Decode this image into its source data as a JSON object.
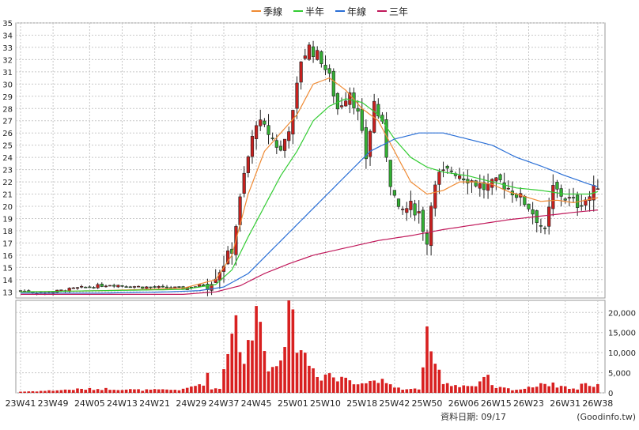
{
  "chart_data": {
    "type": "candlestick",
    "title": "",
    "legend": {
      "placement": "top-center",
      "items": [
        {
          "label": "季線",
          "color": "#ef8a33"
        },
        {
          "label": "半年",
          "color": "#33cc33"
        },
        {
          "label": "年線",
          "color": "#2a6fd6"
        },
        {
          "label": "三年",
          "color": "#c0185a"
        }
      ]
    },
    "price_axis": {
      "min": 12.5,
      "max": 35,
      "ticks": [
        13,
        14,
        15,
        16,
        17,
        18,
        19,
        20,
        21,
        22,
        23,
        24,
        25,
        26,
        27,
        28,
        29,
        30,
        31,
        32,
        33,
        34,
        35
      ],
      "position": "left",
      "grid": true
    },
    "volume_axis": {
      "min": 0,
      "max": 23000,
      "ticks": [
        0,
        5000,
        10000,
        15000,
        20000
      ],
      "tick_labels": [
        "0",
        "5,000",
        "10,000",
        "15,000",
        "20,000"
      ],
      "position": "right",
      "grid": true
    },
    "x_labels": [
      "23W41",
      "23W49",
      "24W05",
      "24W13",
      "24W21",
      "24W29",
      "24W37",
      "24W45",
      "25W01",
      "25W10",
      "25W18",
      "25W42",
      "25W50",
      "26W06",
      "26W15",
      "26W23",
      "26W31",
      "26W38"
    ],
    "price_anchors": [
      [
        0,
        13.1
      ],
      [
        6,
        12.9
      ],
      [
        14,
        13.3
      ],
      [
        22,
        13.6
      ],
      [
        30,
        13.4
      ],
      [
        40,
        13.3
      ],
      [
        46,
        13.6
      ],
      [
        49,
        14.8
      ],
      [
        52,
        16.5
      ],
      [
        55,
        22.5
      ],
      [
        58,
        27
      ],
      [
        61,
        26
      ],
      [
        64,
        24.5
      ],
      [
        67,
        27.5
      ],
      [
        69,
        32
      ],
      [
        71,
        33
      ],
      [
        74,
        32
      ],
      [
        76,
        30.5
      ],
      [
        78,
        28
      ],
      [
        81,
        29.5
      ],
      [
        83,
        27.5
      ],
      [
        85,
        24
      ],
      [
        87,
        28.5
      ],
      [
        89,
        26.5
      ],
      [
        91,
        22
      ],
      [
        93,
        19.5
      ],
      [
        96,
        20
      ],
      [
        98,
        19.5
      ],
      [
        100,
        17
      ],
      [
        101,
        20.5
      ],
      [
        103,
        22.5
      ],
      [
        106,
        23
      ],
      [
        110,
        22.3
      ],
      [
        114,
        21.5
      ],
      [
        118,
        22
      ],
      [
        122,
        21
      ],
      [
        125,
        20
      ],
      [
        128,
        18.5
      ],
      [
        129,
        17.8
      ],
      [
        131,
        21.5
      ],
      [
        134,
        20.7
      ],
      [
        137,
        20.2
      ],
      [
        140,
        20.8
      ],
      [
        142,
        21.8
      ]
    ],
    "volume_anchors": [
      [
        0,
        300
      ],
      [
        6,
        500
      ],
      [
        14,
        900
      ],
      [
        22,
        1000
      ],
      [
        30,
        700
      ],
      [
        40,
        800
      ],
      [
        45,
        2500
      ],
      [
        46,
        4000
      ],
      [
        47,
        1200
      ],
      [
        49,
        1000
      ],
      [
        52,
        17000
      ],
      [
        53,
        18000
      ],
      [
        55,
        8000
      ],
      [
        57,
        14000
      ],
      [
        59,
        23500
      ],
      [
        61,
        5000
      ],
      [
        63,
        8000
      ],
      [
        65,
        15000
      ],
      [
        66,
        18000
      ],
      [
        68,
        14000
      ],
      [
        70,
        9000
      ],
      [
        72,
        6000
      ],
      [
        74,
        4000
      ],
      [
        76,
        5000
      ],
      [
        78,
        3000
      ],
      [
        80,
        4000
      ],
      [
        82,
        3000
      ],
      [
        85,
        2500
      ],
      [
        88,
        3500
      ],
      [
        90,
        2000
      ],
      [
        92,
        1500
      ],
      [
        95,
        800
      ],
      [
        98,
        1000
      ],
      [
        100,
        13000
      ],
      [
        101,
        8000
      ],
      [
        102,
        7000
      ],
      [
        104,
        3000
      ],
      [
        106,
        2000
      ],
      [
        110,
        1800
      ],
      [
        112,
        1500
      ],
      [
        115,
        4000
      ],
      [
        116,
        1500
      ],
      [
        120,
        1000
      ],
      [
        122,
        800
      ],
      [
        125,
        1200
      ],
      [
        128,
        2500
      ],
      [
        131,
        2000
      ],
      [
        134,
        1500
      ],
      [
        137,
        800
      ],
      [
        139,
        3000
      ],
      [
        140,
        1500
      ],
      [
        142,
        2200
      ]
    ],
    "ma_anchors": {
      "季線": [
        [
          0,
          13
        ],
        [
          20,
          13.1
        ],
        [
          40,
          13.3
        ],
        [
          48,
          14
        ],
        [
          52,
          16
        ],
        [
          56,
          21
        ],
        [
          60,
          24.5
        ],
        [
          64,
          26
        ],
        [
          68,
          27.5
        ],
        [
          72,
          30
        ],
        [
          76,
          30.5
        ],
        [
          80,
          29.5
        ],
        [
          84,
          28
        ],
        [
          88,
          27
        ],
        [
          92,
          24.5
        ],
        [
          96,
          22
        ],
        [
          100,
          21
        ],
        [
          104,
          21.3
        ],
        [
          108,
          22
        ],
        [
          112,
          22
        ],
        [
          116,
          21.8
        ],
        [
          120,
          21.2
        ],
        [
          124,
          20.8
        ],
        [
          128,
          20.4
        ],
        [
          132,
          20.5
        ],
        [
          136,
          20.3
        ],
        [
          142,
          20.7
        ]
      ],
      "半年": [
        [
          0,
          13
        ],
        [
          20,
          13.1
        ],
        [
          40,
          13.2
        ],
        [
          48,
          13.6
        ],
        [
          52,
          14.8
        ],
        [
          56,
          17.5
        ],
        [
          60,
          20
        ],
        [
          64,
          22.5
        ],
        [
          68,
          24.5
        ],
        [
          72,
          27
        ],
        [
          76,
          28.2
        ],
        [
          80,
          28.8
        ],
        [
          84,
          28.5
        ],
        [
          88,
          27.5
        ],
        [
          92,
          25.5
        ],
        [
          96,
          24
        ],
        [
          100,
          23.2
        ],
        [
          104,
          22.8
        ],
        [
          110,
          22.5
        ],
        [
          116,
          22
        ],
        [
          122,
          21.5
        ],
        [
          128,
          21.3
        ],
        [
          134,
          21
        ],
        [
          140,
          21
        ],
        [
          142,
          21.2
        ]
      ],
      "年線": [
        [
          0,
          12.9
        ],
        [
          20,
          12.9
        ],
        [
          36,
          13
        ],
        [
          44,
          13.1
        ],
        [
          50,
          13.4
        ],
        [
          56,
          14.5
        ],
        [
          62,
          16.5
        ],
        [
          68,
          18.5
        ],
        [
          74,
          20.5
        ],
        [
          80,
          22.5
        ],
        [
          86,
          24.5
        ],
        [
          92,
          25.5
        ],
        [
          98,
          26
        ],
        [
          104,
          26
        ],
        [
          110,
          25.5
        ],
        [
          116,
          25
        ],
        [
          122,
          24
        ],
        [
          128,
          23.3
        ],
        [
          134,
          22.5
        ],
        [
          140,
          21.8
        ],
        [
          142,
          21.6
        ]
      ],
      "三年": [
        [
          0,
          12.8
        ],
        [
          24,
          12.8
        ],
        [
          40,
          12.8
        ],
        [
          48,
          13
        ],
        [
          54,
          13.5
        ],
        [
          60,
          14.5
        ],
        [
          66,
          15.3
        ],
        [
          72,
          16
        ],
        [
          80,
          16.6
        ],
        [
          88,
          17.2
        ],
        [
          96,
          17.6
        ],
        [
          104,
          18.1
        ],
        [
          112,
          18.5
        ],
        [
          120,
          18.9
        ],
        [
          128,
          19.2
        ],
        [
          136,
          19.5
        ],
        [
          142,
          19.7
        ]
      ]
    }
  },
  "footer": {
    "date_label": "資料日期: 09/17",
    "source": "(Goodinfo.tw)"
  }
}
